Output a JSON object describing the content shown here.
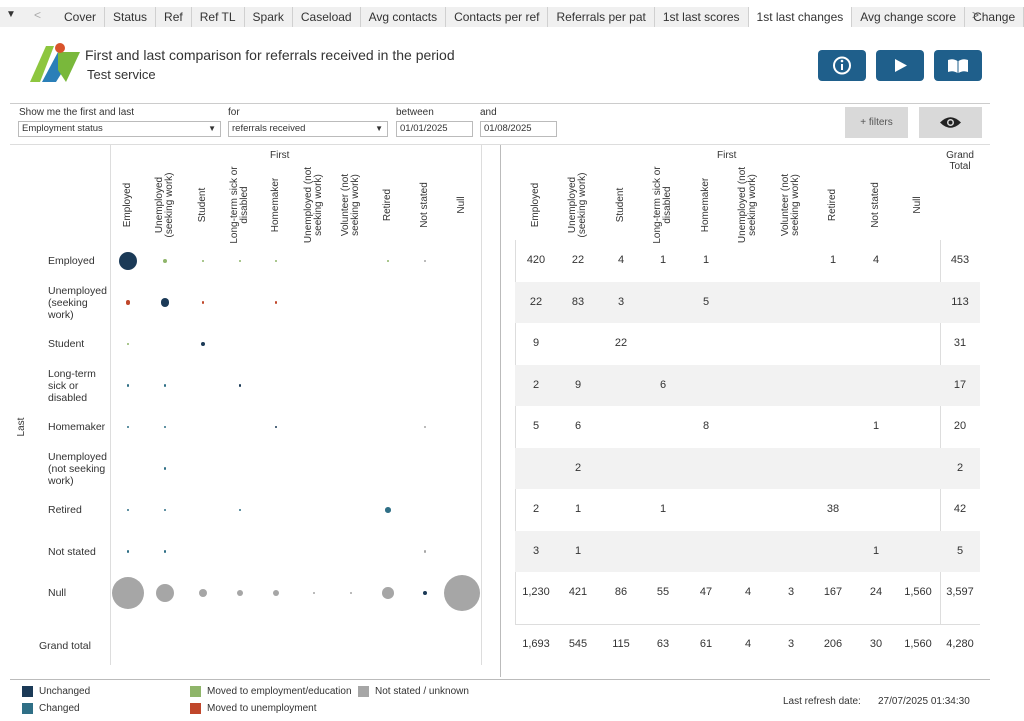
{
  "tabs": [
    "Cover",
    "Status",
    "Ref",
    "Ref TL",
    "Spark",
    "Caseload",
    "Avg contacts",
    "Contacts per ref",
    "Referrals per pat",
    "1st last scores",
    "1st last changes",
    "Avg change score",
    "Change"
  ],
  "header": {
    "title": "First and last comparison for referrals received in the period",
    "subtitle": "Test service"
  },
  "filters": {
    "show_label": "Show me the first and last",
    "show_value": "Employment status",
    "for_label": "for",
    "for_value": "referrals received",
    "between_label": "between",
    "start": "01/01/2025",
    "and_label": "and",
    "end": "01/08/2025",
    "more_button": "+ filters"
  },
  "matrix": {
    "column_header": "First",
    "row_header": "Last",
    "columns": [
      "Employed",
      "Unemployed (seeking work)",
      "Student",
      "Long-term sick or disabled",
      "Homemaker",
      "Unemployed (not seeking work)",
      "Volunteer (not seeking work)",
      "Retired",
      "Not stated",
      "Null"
    ],
    "rows": [
      {
        "label": "Employed",
        "cells": [
          "420",
          "22",
          "4",
          "1",
          "1",
          null,
          null,
          "1",
          "4",
          null
        ],
        "total": "453"
      },
      {
        "label": "Unemployed (seeking work)",
        "cells": [
          "22",
          "83",
          "3",
          null,
          "5",
          null,
          null,
          null,
          null,
          null
        ],
        "total": "113"
      },
      {
        "label": "Student",
        "cells": [
          "9",
          null,
          "22",
          null,
          null,
          null,
          null,
          null,
          null,
          null
        ],
        "total": "31"
      },
      {
        "label": "Long-term sick or disabled",
        "cells": [
          "2",
          "9",
          null,
          "6",
          null,
          null,
          null,
          null,
          null,
          null
        ],
        "total": "17"
      },
      {
        "label": "Homemaker",
        "cells": [
          "5",
          "6",
          null,
          null,
          "8",
          null,
          null,
          null,
          "1",
          null
        ],
        "total": "20"
      },
      {
        "label": "Unemployed (not seeking work)",
        "cells": [
          null,
          "2",
          null,
          null,
          null,
          null,
          null,
          null,
          null,
          null
        ],
        "total": "2"
      },
      {
        "label": "Retired",
        "cells": [
          "2",
          "1",
          null,
          "1",
          null,
          null,
          null,
          "38",
          null,
          null
        ],
        "total": "42"
      },
      {
        "label": "Not stated",
        "cells": [
          "3",
          "1",
          null,
          null,
          null,
          null,
          null,
          null,
          "1",
          null
        ],
        "total": "5"
      },
      {
        "label": "Null",
        "cells": [
          "1,230",
          "421",
          "86",
          "55",
          "47",
          "4",
          "3",
          "167",
          "24",
          "1,560"
        ],
        "total": "3,597"
      }
    ],
    "grand_total_label": "Grand total",
    "grand_total_column": "Grand Total",
    "column_totals": [
      "1,693",
      "545",
      "115",
      "63",
      "61",
      "4",
      "3",
      "206",
      "30",
      "1,560"
    ],
    "grand_total": "4,280"
  },
  "legend": [
    {
      "label": "Unchanged",
      "color": "#1b3a57"
    },
    {
      "label": "Changed",
      "color": "#2f6f86"
    },
    {
      "label": "Moved to employment/education",
      "color": "#8fb56a"
    },
    {
      "label": "Not stated / unknown",
      "color": "#a6a6a6"
    },
    {
      "label": "Moved to unemployment",
      "color": "#c0472b"
    }
  ],
  "footer": {
    "refresh_label": "Last refresh date:",
    "refresh_value": "27/07/2025 01:34:30"
  }
}
